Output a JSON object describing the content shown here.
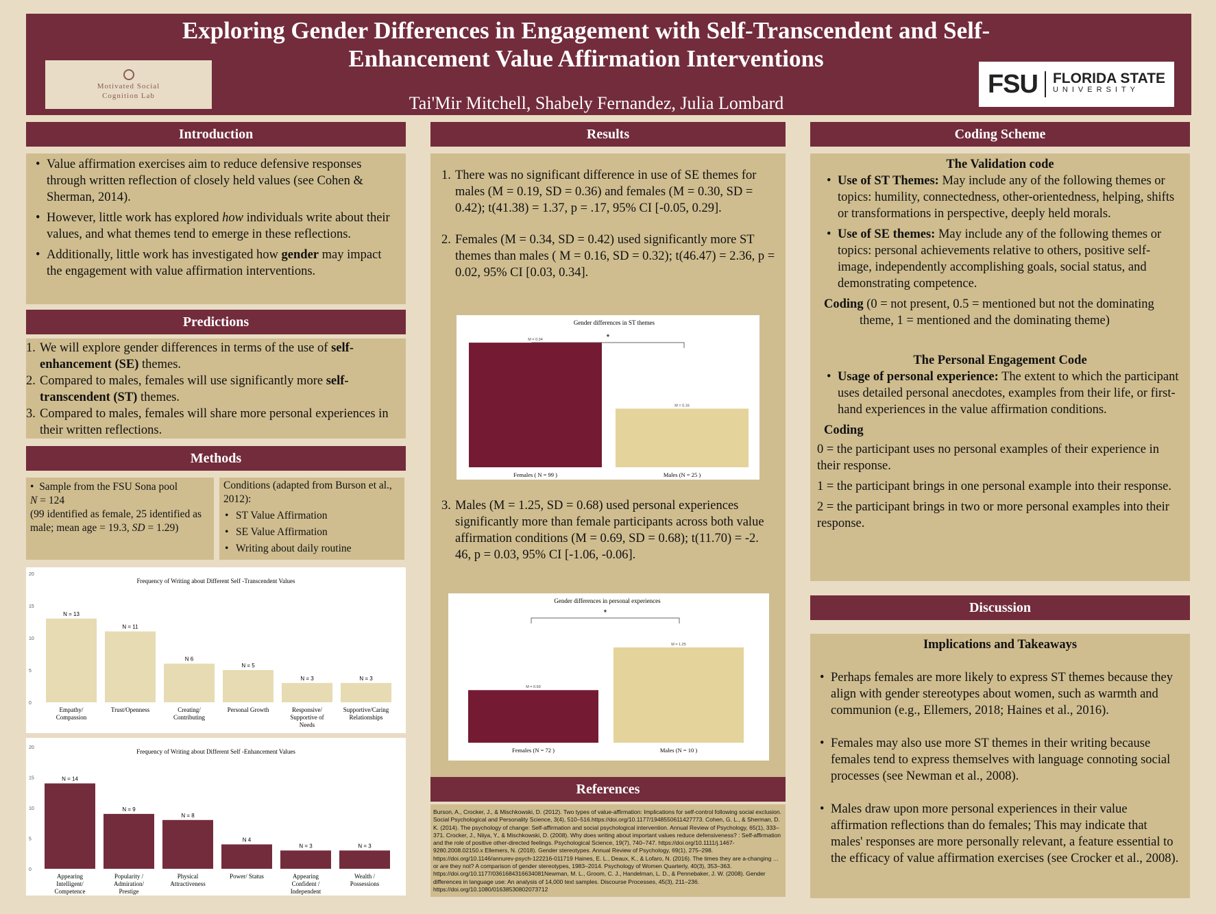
{
  "header": {
    "title": "Exploring Gender Differences in Engagement with Self-Transcendent and Self-Enhancement Value Affirmation Interventions",
    "authors": "Tai'Mir Mitchell, Shabely Fernandez, Julia Lombard",
    "lab_logo_line1": "Motivated Social",
    "lab_logo_line2": "Cognition Lab",
    "fsu_logo_mark": "FSU",
    "fsu_logo_name": "FLORIDA STATE",
    "fsu_logo_sub": "UNIVERSITY"
  },
  "introduction": {
    "heading": "Introduction",
    "b1": "Value affirmation exercises aim to reduce defensive responses through written reflection of closely held values (see Cohen & Sherman, 2014).",
    "b2_pre": "However, little work has explored ",
    "b2_em": "how",
    "b2_post": " individuals write about their values, and what themes tend to emerge in these reflections.",
    "b3_pre": "Additionally, little work has investigated how ",
    "b3_bold": "gender",
    "b3_post": " may impact the engagement with value affirmation interventions."
  },
  "predictions": {
    "heading": "Predictions",
    "p1_pre": "We will explore gender differences in terms of the use of ",
    "p1_bold": "self-enhancement (SE)",
    "p1_post": " themes.",
    "p2_pre": "Compared to males, females will use significantly more ",
    "p2_bold": "self-transcendent (ST)",
    "p2_post": " themes.",
    "p3": "Compared to males, females will share more personal experiences in their written reflections."
  },
  "methods": {
    "heading": "Methods",
    "sample": "Sample from the FSU Sona pool",
    "n_label": "N",
    "n_value": " = 124",
    "demo_pre": "(99 identified as female, 25 identified as male; mean age = 19.3, ",
    "demo_sd": "SD",
    "demo_post": " = 1.29)",
    "conditions_heading": "Conditions (adapted from Burson et al., 2012):",
    "conditions": [
      "ST Value Affirmation",
      "SE Value Affirmation",
      "Writing about daily routine"
    ]
  },
  "chart_data": [
    {
      "type": "bar",
      "title": "Frequency of Writing about Different Self -Transcendent Values",
      "categories": [
        "Empathy/ Compassion",
        "Trust/Openness",
        "Creating/ Contributing",
        "Personal Growth",
        "Responsive/ Supportive of Needs",
        "Supportive/Caring Relationships"
      ],
      "values": [
        13,
        11,
        6,
        5,
        3,
        3
      ],
      "labels": [
        "N = 13",
        "N = 11",
        "N   6",
        "N = 5",
        "N = 3",
        "N = 3"
      ],
      "ylim": [
        0,
        20
      ],
      "yticks": [
        0,
        5,
        10,
        15,
        20
      ],
      "color": "#e6dbb2"
    },
    {
      "type": "bar",
      "title": "Frequency of  Writing about Different Self -Enhancement Values",
      "categories": [
        "Appearing Intelligent/ Competence",
        "Popularity / Admiration/ Prestige",
        "Physical Attractiveness",
        "Power/ Status",
        "Appearing Confident / Independent",
        "Wealth / Possessions"
      ],
      "values": [
        14,
        9,
        8,
        4,
        3,
        3
      ],
      "labels": [
        "N = 14",
        "N = 9",
        "N = 8",
        "N   4",
        "N = 3",
        "N = 3"
      ],
      "ylim": [
        0,
        20
      ],
      "yticks": [
        0,
        5,
        10,
        15,
        20
      ],
      "color": "#722c3c"
    },
    {
      "type": "bar",
      "title": "Gender differences in ST themes",
      "categories": [
        "Females ( N = 99 )",
        "Males (N = 25 )"
      ],
      "values": [
        0.34,
        0.16
      ],
      "labels": [
        "M = 0.34",
        "M = 0.16"
      ],
      "ylim": [
        0,
        0.4
      ],
      "colors": [
        "#741b33",
        "#e4d39b"
      ],
      "significance": "*"
    },
    {
      "type": "bar",
      "title": "Gender differences in personal experiences",
      "categories": [
        "Females (N = 72 )",
        "Males (N = 10 )"
      ],
      "values": [
        0.69,
        1.25
      ],
      "labels": [
        "M = 0.69",
        "M = 1.25"
      ],
      "ylim": [
        0,
        1.6
      ],
      "colors": [
        "#741b33",
        "#e4d39b"
      ],
      "significance": "*"
    }
  ],
  "results": {
    "heading": "Results",
    "r1": "There was no significant difference in use of SE themes for males (M = 0.19, SD = 0.36) and females (M = 0.30, SD = 0.42); t(41.38) = 1.37, p = .17, 95% CI [-0.05, 0.29].",
    "r2": "Females (M = 0.34, SD = 0.42) used significantly more ST themes than males ( M  = 0.16, SD = 0.32); t(46.47) = 2.36, p = 0.02, 95% CI [0.03, 0.34].",
    "r3": "Males (M = 1.25, SD = 0.68) used personal experiences significantly more than female participants across both value affirmation conditions (M = 0.69, SD = 0.68); t(11.70) = -2. 46, p = 0.03, 95% CI [-1.06, -0.06]."
  },
  "references": {
    "heading": "References",
    "text": "Burson, A., Crocker, J., & Mischkowski, D. (2012). Two types of value-affirmation: Implications for self-control following social exclusion. Social Psychological and Personality Science, 3(4), 510–516.https://doi.org/10.1177/1948550611427773. Cohen, G. L., & Sherman, D. K. (2014). The psychology of change: Self-affirmation and social psychological intervention. Annual Review of Psychology, 65(1), 333–371. Crocker, J., Niiya, Y., & Mischkowski, D. (2008). Why does writing about important values reduce defensiveness? : Self-affirmation and the role of positive other-directed feelings. Psychological Science, 19(7), 740–747. https://doi.org/10.1111/j.1467-9280.2008.02150.x Ellemers, N. (2018). Gender stereotypes. Annual Review of Psychology, 69(1), 275–298. https://doi.org/10.1146/annurev-psych-122216-011719 Haines, E. L., Deaux, K., & Lofaro, N. (2016). The times they are a-changing … or are they not? A comparison of gender stereotypes, 1983–2014. Psychology of Women Quarterly, 40(3), 353–363. https://doi.org/10.1177/0361684316634081Newman, M. L., Groom, C. J., Handelman, L. D., & Pennebaker, J. W. (2008). Gender differences in language use: An analysis of 14,000 text samples. Discourse Processes, 45(3), 211–236. https://doi.org/10.1080/01638530802073712"
  },
  "coding": {
    "heading": "Coding Scheme",
    "validation_title": "The Validation code",
    "st_label": "Use of ST Themes:",
    "st_text": " May include any of the following themes or topics: humility, connectedness, other-orientedness, helping, shifts or transformations in perspective, deeply held morals.",
    "se_label": "Use of SE themes:",
    "se_text": " May include any of the following themes or topics: personal achievements relative to others, positive self-image, independently accomplishing goals, social status, and demonstrating competence.",
    "coding_label": "Coding",
    "coding_text": " (0 = not present, 0.5 = mentioned but not the dominating theme, 1 = mentioned and the dominating theme)",
    "personal_title": "The Personal Engagement Code",
    "pe_label": "Usage of personal experience:",
    "pe_text": " The extent to which the participant uses detailed personal anecdotes, examples from their life, or first-hand experiences in the value affirmation conditions.",
    "coding2_label": "Coding",
    "c0": "0 = the participant uses no personal examples of their experience in their response.",
    "c1": "1 = the participant brings in one personal example into their response.",
    "c2": "2 = the participant brings in two or more personal examples into their response."
  },
  "discussion": {
    "heading": "Discussion",
    "subheading": "Implications  and Takeaways",
    "d1": "Perhaps females are more likely to express ST themes because they align with gender stereotypes about women, such as warmth and communion (e.g., Ellemers, 2018; Haines et al., 2016).",
    "d2": "Females may also use more ST themes in their writing because females tend to express themselves with language connoting social processes (see Newman et al., 2008).",
    "d3": "Males draw upon more personal experiences in their value affirmation reflections than do females; This may indicate that males' responses are more personally relevant, a feature essential to the efficacy of value affirmation exercises (see Crocker et al., 2008)."
  }
}
